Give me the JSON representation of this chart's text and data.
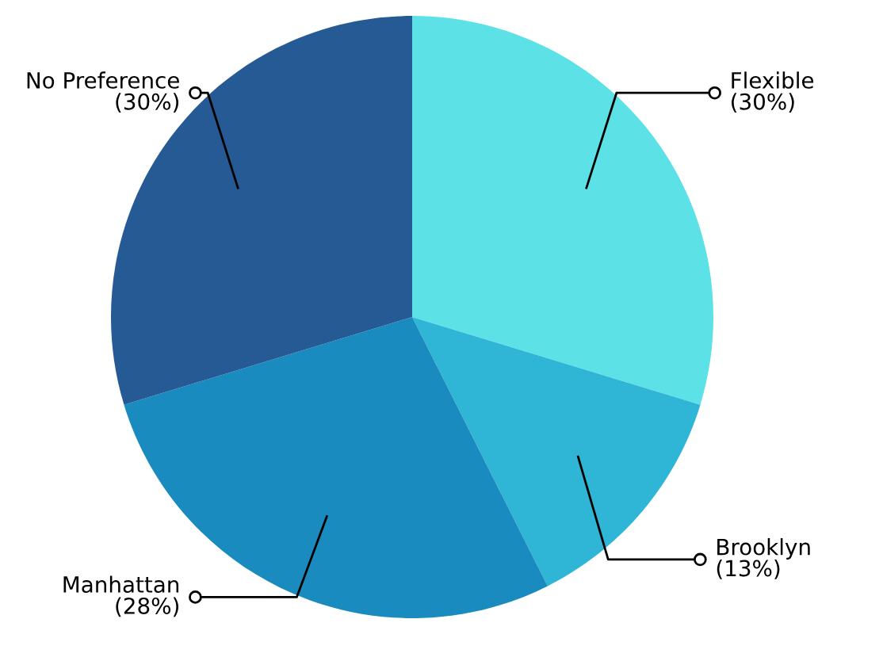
{
  "chart_data": {
    "type": "pie",
    "categories": [
      "Flexible",
      "Brooklyn",
      "Manhattan",
      "No Preference"
    ],
    "values": [
      30,
      13,
      28,
      30
    ],
    "colors": [
      "#5ce1e6",
      "#2fb6d6",
      "#1a8bbf",
      "#265a94"
    ],
    "value_labels": [
      "(30%)",
      "(13%)",
      "(28%)",
      "(30%)"
    ],
    "legend": false
  }
}
